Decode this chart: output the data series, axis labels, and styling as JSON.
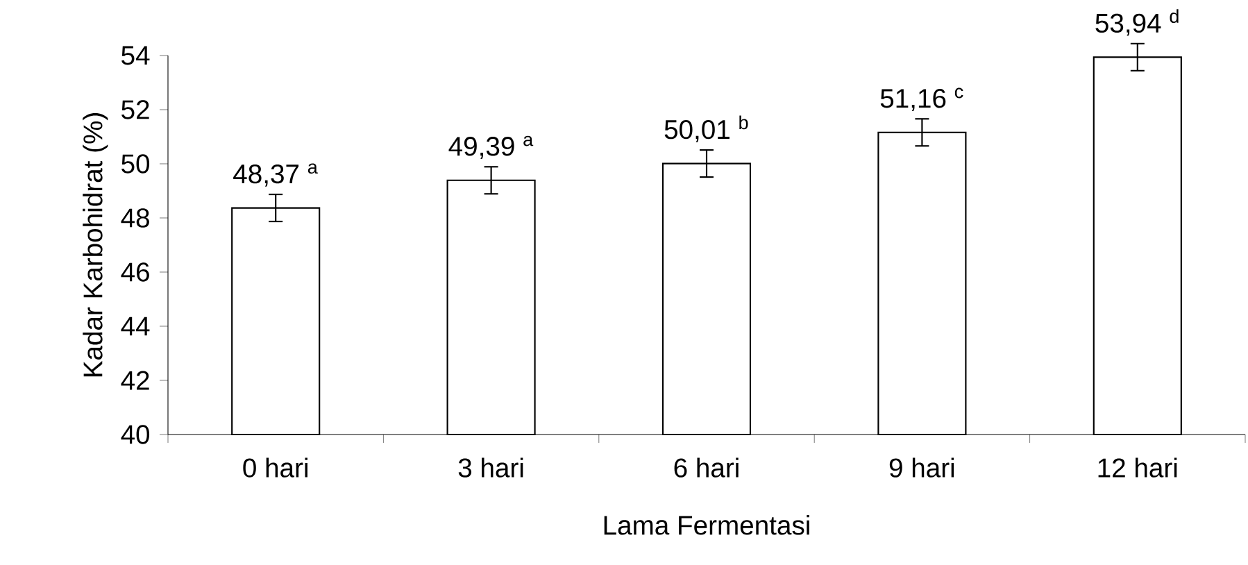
{
  "chart_data": {
    "type": "bar",
    "xlabel": "Lama Fermentasi",
    "ylabel": "Kadar Karbohidrat (%)",
    "categories": [
      "0 hari",
      "3 hari",
      "6 hari",
      "9 hari",
      "12 hari"
    ],
    "values": [
      48.37,
      49.39,
      50.01,
      51.16,
      53.94
    ],
    "errors": [
      0.5,
      0.5,
      0.5,
      0.5,
      0.5
    ],
    "value_labels": [
      "48,37 $^{a}$",
      "49,39 $^{a}$",
      "50,01 $^{b}$",
      "51,16 $^{c}$",
      "53,94 $^{d}$"
    ],
    "color": "#ffffff",
    "ylim": [
      40,
      54
    ],
    "yticks": [
      40,
      42,
      44,
      46,
      48,
      50,
      52,
      54
    ],
    "grid": false
  }
}
